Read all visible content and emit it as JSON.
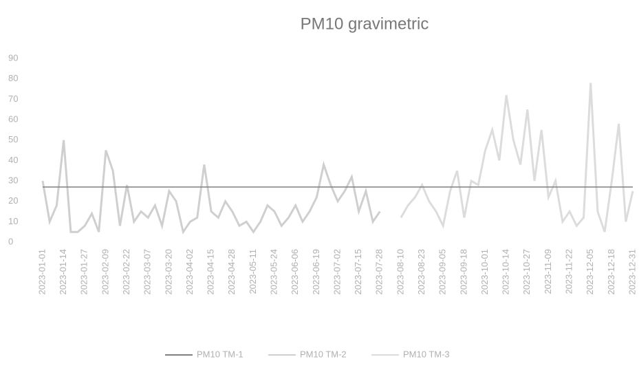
{
  "chart_data": {
    "type": "line",
    "title": "PM10 gravimetric",
    "categories": [
      "2023-01-01",
      null,
      null,
      "2023-01-14",
      null,
      null,
      "2023-01-27",
      null,
      null,
      "2023-02-09",
      null,
      null,
      "2023-02-22",
      null,
      null,
      "2023-03-07",
      null,
      null,
      "2023-03-20",
      null,
      null,
      "2023-04-02",
      null,
      null,
      "2023-04-15",
      null,
      null,
      "2023-04-28",
      null,
      null,
      "2023-05-11",
      null,
      null,
      "2023-05-24",
      null,
      null,
      "2023-06-06",
      null,
      null,
      "2023-06-19",
      null,
      null,
      "2023-07-02",
      null,
      null,
      "2023-07-15",
      null,
      null,
      "2023-07-28",
      null,
      null,
      "2023-08-10",
      null,
      null,
      "2023-08-23",
      null,
      null,
      "2023-09-05",
      null,
      null,
      "2023-09-18",
      null,
      null,
      "2023-10-01",
      null,
      null,
      "2023-10-14",
      null,
      null,
      "2023-10-27",
      null,
      null,
      "2023-11-09",
      null,
      null,
      "2023-11-22",
      null,
      null,
      "2023-12-05",
      null,
      null,
      "2023-12-18",
      null,
      null,
      "2023-12-31"
    ],
    "series": [
      {
        "name": "PM10 TM-1",
        "color": "#7f7f7f",
        "values": [
          27,
          27,
          27,
          27,
          27,
          27,
          27,
          27,
          27,
          27,
          27,
          27,
          27,
          27,
          27,
          27,
          27,
          27,
          27,
          27,
          27,
          27,
          27,
          27,
          27,
          27,
          27,
          27,
          27,
          27,
          27,
          27,
          27,
          27,
          27,
          27,
          27,
          27,
          27,
          27,
          27,
          27,
          27,
          27,
          27,
          27,
          27,
          27,
          27,
          27,
          27,
          27,
          27,
          27,
          27,
          27,
          27,
          27,
          27,
          27,
          27,
          27,
          27,
          27,
          27,
          27,
          27,
          27,
          27,
          27,
          27,
          27,
          27,
          27,
          27,
          27,
          27,
          27,
          27,
          27,
          27,
          27,
          27,
          27,
          27
        ]
      },
      {
        "name": "PM10 TM-2",
        "color": "#cfcfcf",
        "values": [
          30,
          10,
          18,
          50,
          5,
          5,
          8,
          14,
          5,
          45,
          35,
          8,
          28,
          10,
          15,
          12,
          18,
          8,
          25,
          20,
          5,
          10,
          12,
          38,
          15,
          12,
          20,
          15,
          8,
          10,
          5,
          10,
          18,
          15,
          8,
          12,
          18,
          10,
          15,
          22,
          38,
          28,
          20,
          25,
          32,
          15,
          25,
          10,
          15,
          null,
          null,
          null,
          null,
          null,
          null,
          null,
          null,
          null,
          null,
          null,
          null,
          null,
          null,
          null,
          null,
          null,
          null,
          null,
          null,
          null,
          null,
          null,
          null,
          null,
          null,
          null,
          null,
          null,
          null,
          null,
          null,
          null,
          null,
          null,
          null
        ]
      },
      {
        "name": "PM10 TM-3",
        "color": "#dcdcdc",
        "values": [
          null,
          null,
          null,
          null,
          null,
          null,
          null,
          null,
          null,
          null,
          null,
          null,
          null,
          null,
          null,
          null,
          null,
          null,
          null,
          null,
          null,
          null,
          null,
          null,
          null,
          null,
          null,
          null,
          null,
          null,
          null,
          null,
          null,
          null,
          null,
          null,
          null,
          null,
          null,
          null,
          null,
          null,
          null,
          null,
          null,
          null,
          null,
          null,
          null,
          null,
          null,
          12,
          18,
          22,
          28,
          20,
          15,
          8,
          25,
          35,
          12,
          30,
          28,
          45,
          55,
          40,
          72,
          50,
          38,
          65,
          30,
          55,
          22,
          30,
          10,
          15,
          8,
          12,
          78,
          15,
          5,
          30,
          58,
          10,
          25
        ]
      }
    ],
    "ylim": [
      0,
      90
    ],
    "yticks": [
      0,
      10,
      20,
      30,
      40,
      50,
      60,
      70,
      80,
      90
    ],
    "grid": false
  }
}
